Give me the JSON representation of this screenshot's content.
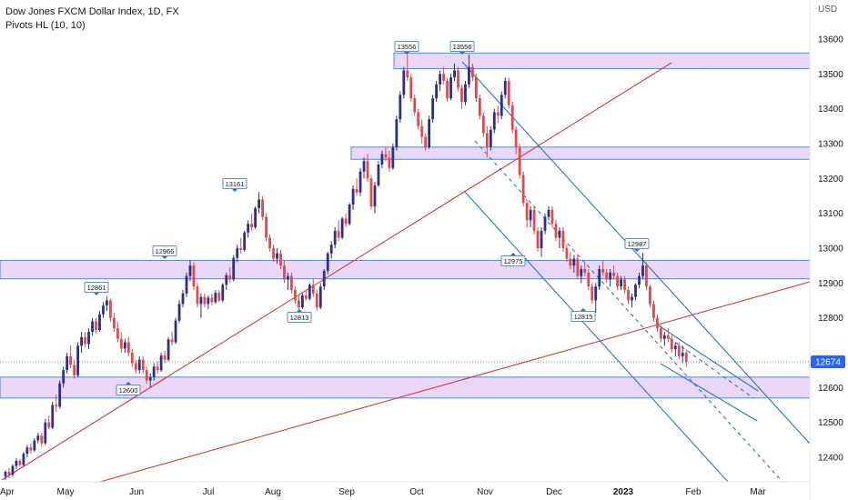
{
  "legend": {
    "title": "Dow Jones FXCM Dollar Index, 1D, FX",
    "indicator": "Pivots HL (10, 10)"
  },
  "colors": {
    "bull": "#2c2f86",
    "bear": "#e04a4a",
    "zone_fill": "#e3c8f2",
    "zone_stroke": "#3d8ee6",
    "channel": "#2f6fd6",
    "trend": "#d63a3a",
    "price_badge": "#2962ff",
    "pivot_label": "#2c6bd4"
  },
  "chart_data": {
    "type": "candlestick",
    "y_axis_unit": "USD",
    "ylim": [
      12300,
      13650
    ],
    "y_ticks": [
      12400,
      12500,
      12600,
      12700,
      12800,
      12900,
      13000,
      13100,
      13200,
      13300,
      13400,
      13500,
      13600
    ],
    "x_ticks": [
      "Apr",
      "May",
      "Jun",
      "Jul",
      "Aug",
      "Sep",
      "Oct",
      "Nov",
      "Dec",
      "2023",
      "Feb",
      "Mar"
    ],
    "last_price": 12674,
    "pivot_labels": [
      {
        "label": "12861",
        "value": 12861,
        "type": "high"
      },
      {
        "label": "12600",
        "value": 12600,
        "type": "low"
      },
      {
        "label": "12966",
        "value": 12966,
        "type": "high"
      },
      {
        "label": "13161",
        "value": 13161,
        "type": "high"
      },
      {
        "label": "12813",
        "value": 12813,
        "type": "low"
      },
      {
        "label": "13556",
        "value": 13556,
        "type": "high"
      },
      {
        "label": "13556",
        "value": 13556,
        "type": "high"
      },
      {
        "label": "12975",
        "value": 12975,
        "type": "low"
      },
      {
        "label": "12815",
        "value": 12815,
        "type": "low"
      },
      {
        "label": "12987",
        "value": 12987,
        "type": "high"
      }
    ],
    "zones": [
      {
        "from": 13515,
        "to": 13560
      },
      {
        "from": 13255,
        "to": 13290
      },
      {
        "from": 12912,
        "to": 12965
      },
      {
        "from": 12570,
        "to": 12630
      }
    ],
    "candles": [
      [
        12345,
        12362,
        12335,
        12358
      ],
      [
        12358,
        12370,
        12340,
        12350
      ],
      [
        12350,
        12380,
        12345,
        12375
      ],
      [
        12375,
        12398,
        12365,
        12390
      ],
      [
        12390,
        12395,
        12372,
        12378
      ],
      [
        12378,
        12415,
        12375,
        12410
      ],
      [
        12410,
        12435,
        12400,
        12428
      ],
      [
        12428,
        12440,
        12410,
        12420
      ],
      [
        12420,
        12455,
        12415,
        12448
      ],
      [
        12448,
        12470,
        12440,
        12462
      ],
      [
        12462,
        12470,
        12430,
        12440
      ],
      [
        12440,
        12510,
        12435,
        12500
      ],
      [
        12500,
        12520,
        12480,
        12485
      ],
      [
        12485,
        12560,
        12480,
        12550
      ],
      [
        12550,
        12580,
        12530,
        12545
      ],
      [
        12545,
        12620,
        12540,
        12612
      ],
      [
        12612,
        12660,
        12600,
        12650
      ],
      [
        12650,
        12700,
        12640,
        12690
      ],
      [
        12690,
        12720,
        12655,
        12665
      ],
      [
        12665,
        12680,
        12625,
        12635
      ],
      [
        12635,
        12730,
        12630,
        12720
      ],
      [
        12720,
        12760,
        12700,
        12745
      ],
      [
        12745,
        12760,
        12715,
        12725
      ],
      [
        12725,
        12770,
        12710,
        12760
      ],
      [
        12760,
        12800,
        12750,
        12790
      ],
      [
        12790,
        12800,
        12755,
        12765
      ],
      [
        12765,
        12820,
        12760,
        12810
      ],
      [
        12810,
        12845,
        12800,
        12835
      ],
      [
        12835,
        12861,
        12820,
        12850
      ],
      [
        12850,
        12855,
        12790,
        12800
      ],
      [
        12800,
        12815,
        12760,
        12770
      ],
      [
        12770,
        12790,
        12730,
        12740
      ],
      [
        12740,
        12760,
        12700,
        12712
      ],
      [
        12712,
        12740,
        12700,
        12730
      ],
      [
        12730,
        12745,
        12690,
        12700
      ],
      [
        12700,
        12712,
        12660,
        12670
      ],
      [
        12670,
        12680,
        12640,
        12650
      ],
      [
        12650,
        12690,
        12640,
        12680
      ],
      [
        12680,
        12690,
        12640,
        12650
      ],
      [
        12650,
        12660,
        12610,
        12620
      ],
      [
        12620,
        12640,
        12600,
        12630
      ],
      [
        12630,
        12670,
        12620,
        12660
      ],
      [
        12660,
        12675,
        12640,
        12650
      ],
      [
        12650,
        12700,
        12645,
        12692
      ],
      [
        12692,
        12705,
        12670,
        12680
      ],
      [
        12680,
        12745,
        12675,
        12738
      ],
      [
        12738,
        12760,
        12720,
        12730
      ],
      [
        12730,
        12800,
        12725,
        12792
      ],
      [
        12792,
        12850,
        12785,
        12840
      ],
      [
        12840,
        12880,
        12830,
        12870
      ],
      [
        12870,
        12930,
        12860,
        12920
      ],
      [
        12920,
        12966,
        12905,
        12950
      ],
      [
        12950,
        12960,
        12880,
        12890
      ],
      [
        12890,
        12900,
        12830,
        12840
      ],
      [
        12840,
        12870,
        12800,
        12860
      ],
      [
        12860,
        12870,
        12830,
        12840
      ],
      [
        12840,
        12865,
        12825,
        12858
      ],
      [
        12858,
        12870,
        12835,
        12845
      ],
      [
        12845,
        12880,
        12840,
        12872
      ],
      [
        12872,
        12880,
        12845,
        12850
      ],
      [
        12850,
        12900,
        12845,
        12895
      ],
      [
        12895,
        12930,
        12880,
        12922
      ],
      [
        12922,
        12945,
        12900,
        12910
      ],
      [
        12910,
        12980,
        12905,
        12972
      ],
      [
        12972,
        13010,
        12960,
        13000
      ],
      [
        13000,
        13030,
        12985,
        12995
      ],
      [
        12995,
        13050,
        12990,
        13045
      ],
      [
        13045,
        13080,
        13030,
        13070
      ],
      [
        13070,
        13100,
        13050,
        13060
      ],
      [
        13060,
        13120,
        13055,
        13115
      ],
      [
        13115,
        13161,
        13100,
        13140
      ],
      [
        13140,
        13150,
        13080,
        13090
      ],
      [
        13090,
        13100,
        13020,
        13030
      ],
      [
        13030,
        13040,
        12990,
        13000
      ],
      [
        13000,
        13010,
        12960,
        12970
      ],
      [
        12970,
        13000,
        12955,
        12985
      ],
      [
        12985,
        12995,
        12940,
        12950
      ],
      [
        12950,
        12965,
        12900,
        12910
      ],
      [
        12910,
        12930,
        12880,
        12920
      ],
      [
        12920,
        12930,
        12870,
        12880
      ],
      [
        12880,
        12890,
        12840,
        12850
      ],
      [
        12850,
        12865,
        12813,
        12830
      ],
      [
        12830,
        12870,
        12825,
        12865
      ],
      [
        12865,
        12880,
        12850,
        12855
      ],
      [
        12855,
        12900,
        12850,
        12895
      ],
      [
        12895,
        12910,
        12860,
        12870
      ],
      [
        12870,
        12880,
        12820,
        12830
      ],
      [
        12830,
        12900,
        12825,
        12890
      ],
      [
        12890,
        12940,
        12880,
        12935
      ],
      [
        12935,
        12990,
        12925,
        12985
      ],
      [
        12985,
        13020,
        12970,
        13010
      ],
      [
        13010,
        13060,
        13000,
        13050
      ],
      [
        13050,
        13080,
        13020,
        13030
      ],
      [
        13030,
        13090,
        13025,
        13085
      ],
      [
        13085,
        13100,
        13060,
        13070
      ],
      [
        13070,
        13130,
        13065,
        13125
      ],
      [
        13125,
        13180,
        13110,
        13170
      ],
      [
        13170,
        13200,
        13150,
        13160
      ],
      [
        13160,
        13230,
        13150,
        13220
      ],
      [
        13220,
        13260,
        13200,
        13250
      ],
      [
        13250,
        13270,
        13190,
        13200
      ],
      [
        13200,
        13210,
        13110,
        13120
      ],
      [
        13120,
        13190,
        13100,
        13180
      ],
      [
        13180,
        13250,
        13175,
        13240
      ],
      [
        13240,
        13280,
        13230,
        13270
      ],
      [
        13270,
        13290,
        13250,
        13260
      ],
      [
        13260,
        13280,
        13220,
        13230
      ],
      [
        13230,
        13300,
        13225,
        13290
      ],
      [
        13290,
        13380,
        13280,
        13370
      ],
      [
        13370,
        13450,
        13360,
        13440
      ],
      [
        13440,
        13520,
        13430,
        13510
      ],
      [
        13510,
        13556,
        13480,
        13490
      ],
      [
        13490,
        13500,
        13420,
        13430
      ],
      [
        13430,
        13440,
        13380,
        13390
      ],
      [
        13390,
        13400,
        13340,
        13350
      ],
      [
        13350,
        13370,
        13300,
        13320
      ],
      [
        13320,
        13330,
        13280,
        13290
      ],
      [
        13290,
        13380,
        13285,
        13370
      ],
      [
        13370,
        13440,
        13360,
        13430
      ],
      [
        13430,
        13480,
        13420,
        13470
      ],
      [
        13470,
        13510,
        13450,
        13500
      ],
      [
        13500,
        13520,
        13470,
        13480
      ],
      [
        13480,
        13490,
        13420,
        13430
      ],
      [
        13430,
        13500,
        13425,
        13490
      ],
      [
        13490,
        13530,
        13480,
        13510
      ],
      [
        13510,
        13520,
        13450,
        13460
      ],
      [
        13460,
        13470,
        13400,
        13420
      ],
      [
        13420,
        13480,
        13410,
        13470
      ],
      [
        13470,
        13556,
        13460,
        13520
      ],
      [
        13520,
        13530,
        13480,
        13490
      ],
      [
        13490,
        13500,
        13420,
        13430
      ],
      [
        13430,
        13440,
        13370,
        13380
      ],
      [
        13380,
        13390,
        13320,
        13330
      ],
      [
        13330,
        13350,
        13260,
        13290
      ],
      [
        13290,
        13350,
        13280,
        13340
      ],
      [
        13340,
        13400,
        13330,
        13390
      ],
      [
        13390,
        13410,
        13360,
        13380
      ],
      [
        13380,
        13450,
        13370,
        13440
      ],
      [
        13440,
        13490,
        13430,
        13480
      ],
      [
        13480,
        13490,
        13400,
        13410
      ],
      [
        13410,
        13420,
        13330,
        13340
      ],
      [
        13340,
        13350,
        13270,
        13290
      ],
      [
        13290,
        13300,
        13200,
        13210
      ],
      [
        13210,
        13220,
        13120,
        13130
      ],
      [
        13130,
        13140,
        13060,
        13080
      ],
      [
        13080,
        13120,
        13060,
        13110
      ],
      [
        13110,
        13120,
        13040,
        13050
      ],
      [
        13050,
        13060,
        12990,
        13000
      ],
      [
        13000,
        13060,
        12975,
        13050
      ],
      [
        13050,
        13100,
        13040,
        13090
      ],
      [
        13090,
        13120,
        13080,
        13110
      ],
      [
        13110,
        13120,
        13060,
        13070
      ],
      [
        13070,
        13080,
        13020,
        13030
      ],
      [
        13030,
        13060,
        13000,
        13050
      ],
      [
        13050,
        13060,
        12990,
        13000
      ],
      [
        13000,
        13010,
        12960,
        12970
      ],
      [
        12970,
        12990,
        12940,
        12950
      ],
      [
        12950,
        12980,
        12930,
        12970
      ],
      [
        12970,
        12980,
        12910,
        12920
      ],
      [
        12920,
        12950,
        12900,
        12940
      ],
      [
        12940,
        12960,
        12920,
        12930
      ],
      [
        12930,
        12940,
        12880,
        12890
      ],
      [
        12890,
        12900,
        12840,
        12850
      ],
      [
        12850,
        12900,
        12815,
        12890
      ],
      [
        12890,
        12950,
        12880,
        12940
      ],
      [
        12940,
        12965,
        12920,
        12930
      ],
      [
        12930,
        12940,
        12900,
        12910
      ],
      [
        12910,
        12940,
        12890,
        12930
      ],
      [
        12930,
        12950,
        12910,
        12920
      ],
      [
        12920,
        12930,
        12880,
        12890
      ],
      [
        12890,
        12920,
        12880,
        12910
      ],
      [
        12910,
        12920,
        12870,
        12880
      ],
      [
        12880,
        12890,
        12840,
        12850
      ],
      [
        12850,
        12870,
        12830,
        12860
      ],
      [
        12860,
        12900,
        12850,
        12895
      ],
      [
        12895,
        12930,
        12885,
        12920
      ],
      [
        12920,
        12987,
        12910,
        12950
      ],
      [
        12950,
        12960,
        12880,
        12890
      ],
      [
        12890,
        12895,
        12830,
        12840
      ],
      [
        12840,
        12850,
        12790,
        12800
      ],
      [
        12800,
        12810,
        12760,
        12770
      ],
      [
        12770,
        12780,
        12730,
        12740
      ],
      [
        12740,
        12760,
        12720,
        12750
      ],
      [
        12750,
        12770,
        12730,
        12740
      ],
      [
        12740,
        12750,
        12700,
        12710
      ],
      [
        12710,
        12730,
        12690,
        12720
      ],
      [
        12720,
        12730,
        12680,
        12690
      ],
      [
        12690,
        12720,
        12670,
        12700
      ],
      [
        12700,
        12710,
        12660,
        12674
      ]
    ]
  }
}
